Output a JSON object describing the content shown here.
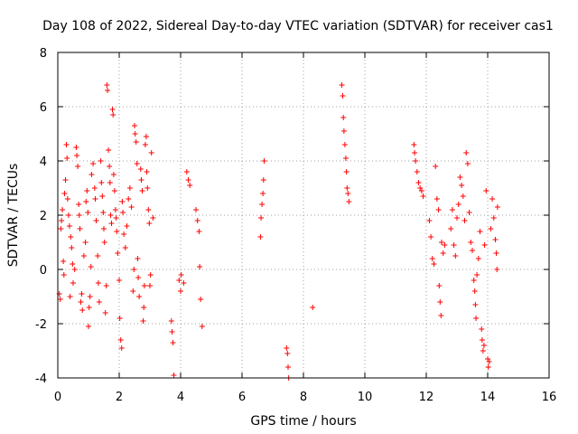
{
  "chart_data": {
    "type": "scatter",
    "title": "Day 108 of 2022, Sidereal Day-to-day VTEC variation (SDTVAR) for receiver cas1",
    "xlabel": "GPS time / hours",
    "ylabel": "SDTVAR / TECUs",
    "xlim": [
      0,
      16
    ],
    "ylim": [
      -4,
      8
    ],
    "xticks": [
      0,
      2,
      4,
      6,
      8,
      10,
      12,
      14,
      16
    ],
    "yticks": [
      -4,
      -2,
      0,
      2,
      4,
      6,
      8
    ],
    "grid": true,
    "marker": "+",
    "color": "#ff0000",
    "series": [
      {
        "name": "cas1",
        "points": [
          [
            0.05,
            -0.9
          ],
          [
            0.08,
            -1.1
          ],
          [
            0.1,
            1.5
          ],
          [
            0.12,
            1.8
          ],
          [
            0.15,
            2.2
          ],
          [
            0.18,
            0.3
          ],
          [
            0.2,
            -0.2
          ],
          [
            0.22,
            2.8
          ],
          [
            0.25,
            3.3
          ],
          [
            0.28,
            4.6
          ],
          [
            0.3,
            4.1
          ],
          [
            0.32,
            2.6
          ],
          [
            0.35,
            2.0
          ],
          [
            0.38,
            1.6
          ],
          [
            0.4,
            -1.0
          ],
          [
            0.42,
            1.2
          ],
          [
            0.45,
            0.8
          ],
          [
            0.48,
            0.2
          ],
          [
            0.5,
            -0.5
          ],
          [
            0.55,
            0.0
          ],
          [
            0.6,
            4.5
          ],
          [
            0.62,
            4.2
          ],
          [
            0.65,
            3.8
          ],
          [
            0.68,
            2.4
          ],
          [
            0.7,
            2.0
          ],
          [
            0.72,
            1.5
          ],
          [
            0.75,
            -1.2
          ],
          [
            0.78,
            -0.9
          ],
          [
            0.8,
            -1.5
          ],
          [
            0.85,
            0.5
          ],
          [
            0.9,
            1.0
          ],
          [
            0.92,
            2.5
          ],
          [
            0.95,
            2.9
          ],
          [
            0.98,
            2.1
          ],
          [
            1.0,
            -2.1
          ],
          [
            1.02,
            -1.4
          ],
          [
            1.05,
            -1.0
          ],
          [
            1.08,
            0.1
          ],
          [
            1.1,
            3.5
          ],
          [
            1.15,
            3.9
          ],
          [
            1.2,
            3.0
          ],
          [
            1.22,
            2.6
          ],
          [
            1.25,
            1.8
          ],
          [
            1.3,
            0.5
          ],
          [
            1.32,
            -0.5
          ],
          [
            1.35,
            -1.2
          ],
          [
            1.4,
            4.0
          ],
          [
            1.42,
            3.2
          ],
          [
            1.45,
            2.7
          ],
          [
            1.48,
            2.1
          ],
          [
            1.5,
            1.5
          ],
          [
            1.52,
            1.0
          ],
          [
            1.55,
            -1.6
          ],
          [
            1.58,
            -0.6
          ],
          [
            1.6,
            6.8
          ],
          [
            1.62,
            6.6
          ],
          [
            1.65,
            4.4
          ],
          [
            1.68,
            3.8
          ],
          [
            1.7,
            3.2
          ],
          [
            1.72,
            2.0
          ],
          [
            1.75,
            1.7
          ],
          [
            1.78,
            5.9
          ],
          [
            1.8,
            5.7
          ],
          [
            1.82,
            3.5
          ],
          [
            1.85,
            2.9
          ],
          [
            1.88,
            2.2
          ],
          [
            1.9,
            1.9
          ],
          [
            1.92,
            1.4
          ],
          [
            1.95,
            0.6
          ],
          [
            2.0,
            -0.4
          ],
          [
            2.02,
            -1.8
          ],
          [
            2.05,
            -2.6
          ],
          [
            2.08,
            -2.9
          ],
          [
            2.1,
            2.5
          ],
          [
            2.12,
            2.1
          ],
          [
            2.15,
            1.3
          ],
          [
            2.2,
            0.8
          ],
          [
            2.25,
            1.6
          ],
          [
            2.3,
            2.6
          ],
          [
            2.35,
            3.0
          ],
          [
            2.4,
            2.3
          ],
          [
            2.45,
            -0.8
          ],
          [
            2.48,
            0.0
          ],
          [
            2.5,
            5.3
          ],
          [
            2.52,
            5.0
          ],
          [
            2.55,
            4.7
          ],
          [
            2.58,
            3.9
          ],
          [
            2.6,
            0.4
          ],
          [
            2.62,
            -0.3
          ],
          [
            2.65,
            -1.0
          ],
          [
            2.7,
            3.7
          ],
          [
            2.72,
            3.3
          ],
          [
            2.75,
            2.9
          ],
          [
            2.78,
            -1.9
          ],
          [
            2.8,
            -1.4
          ],
          [
            2.82,
            -0.6
          ],
          [
            2.85,
            4.6
          ],
          [
            2.88,
            4.9
          ],
          [
            2.9,
            3.6
          ],
          [
            2.92,
            3.0
          ],
          [
            2.95,
            2.2
          ],
          [
            2.98,
            1.7
          ],
          [
            3.0,
            -0.6
          ],
          [
            3.02,
            -0.2
          ],
          [
            3.05,
            4.3
          ],
          [
            3.1,
            1.9
          ],
          [
            3.7,
            -1.9
          ],
          [
            3.72,
            -2.3
          ],
          [
            3.75,
            -2.7
          ],
          [
            3.78,
            -3.9
          ],
          [
            3.95,
            -0.4
          ],
          [
            4.0,
            -0.8
          ],
          [
            4.02,
            -0.2
          ],
          [
            4.1,
            -0.5
          ],
          [
            4.2,
            3.6
          ],
          [
            4.25,
            3.3
          ],
          [
            4.3,
            3.1
          ],
          [
            4.5,
            2.2
          ],
          [
            4.55,
            1.8
          ],
          [
            4.6,
            1.4
          ],
          [
            4.62,
            0.1
          ],
          [
            4.65,
            -1.1
          ],
          [
            4.7,
            -2.1
          ],
          [
            6.6,
            1.2
          ],
          [
            6.62,
            1.9
          ],
          [
            6.65,
            2.4
          ],
          [
            6.68,
            2.8
          ],
          [
            6.7,
            3.3
          ],
          [
            6.72,
            4.0
          ],
          [
            7.45,
            -2.9
          ],
          [
            7.48,
            -3.1
          ],
          [
            7.5,
            -3.6
          ],
          [
            7.52,
            -4.0
          ],
          [
            8.3,
            -1.4
          ],
          [
            9.25,
            6.8
          ],
          [
            9.28,
            6.4
          ],
          [
            9.3,
            5.6
          ],
          [
            9.32,
            5.1
          ],
          [
            9.35,
            4.6
          ],
          [
            9.38,
            4.1
          ],
          [
            9.4,
            3.6
          ],
          [
            9.42,
            3.0
          ],
          [
            9.45,
            2.8
          ],
          [
            9.48,
            2.5
          ],
          [
            11.6,
            4.6
          ],
          [
            11.62,
            4.3
          ],
          [
            11.65,
            4.0
          ],
          [
            11.7,
            3.6
          ],
          [
            11.75,
            3.2
          ],
          [
            11.8,
            3.0
          ],
          [
            11.85,
            2.9
          ],
          [
            11.9,
            2.7
          ],
          [
            12.1,
            1.8
          ],
          [
            12.15,
            1.2
          ],
          [
            12.2,
            0.4
          ],
          [
            12.25,
            0.2
          ],
          [
            12.3,
            3.8
          ],
          [
            12.35,
            2.6
          ],
          [
            12.4,
            2.2
          ],
          [
            12.42,
            -0.6
          ],
          [
            12.45,
            -1.2
          ],
          [
            12.48,
            -1.7
          ],
          [
            12.5,
            1.0
          ],
          [
            12.55,
            0.6
          ],
          [
            12.6,
            0.9
          ],
          [
            12.8,
            1.5
          ],
          [
            12.85,
            2.2
          ],
          [
            12.9,
            0.9
          ],
          [
            12.95,
            0.5
          ],
          [
            13.0,
            1.9
          ],
          [
            13.05,
            2.4
          ],
          [
            13.1,
            3.4
          ],
          [
            13.15,
            3.1
          ],
          [
            13.2,
            2.7
          ],
          [
            13.25,
            1.8
          ],
          [
            13.3,
            4.3
          ],
          [
            13.35,
            3.9
          ],
          [
            13.4,
            2.1
          ],
          [
            13.45,
            1.0
          ],
          [
            13.5,
            0.7
          ],
          [
            13.55,
            -0.4
          ],
          [
            13.58,
            -0.8
          ],
          [
            13.6,
            -1.3
          ],
          [
            13.62,
            -1.8
          ],
          [
            13.65,
            -0.2
          ],
          [
            13.7,
            0.4
          ],
          [
            13.75,
            1.4
          ],
          [
            13.8,
            -2.2
          ],
          [
            13.82,
            -2.6
          ],
          [
            13.85,
            -3.0
          ],
          [
            13.88,
            -2.8
          ],
          [
            13.9,
            0.9
          ],
          [
            13.95,
            2.9
          ],
          [
            14.0,
            -3.3
          ],
          [
            14.02,
            -3.6
          ],
          [
            14.05,
            -3.4
          ],
          [
            14.1,
            1.5
          ],
          [
            14.15,
            2.6
          ],
          [
            14.2,
            1.9
          ],
          [
            14.25,
            1.1
          ],
          [
            14.28,
            0.6
          ],
          [
            14.3,
            0.0
          ],
          [
            14.32,
            2.3
          ]
        ]
      }
    ]
  }
}
